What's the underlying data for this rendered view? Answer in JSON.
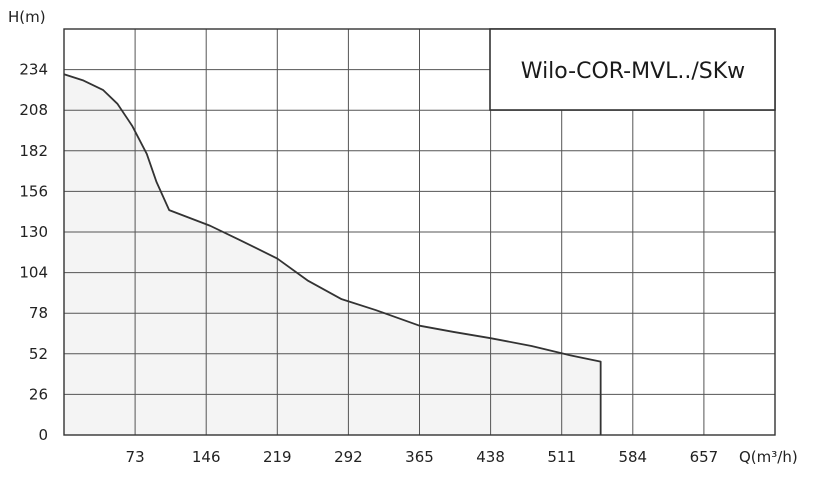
{
  "chart_data": {
    "type": "area",
    "title": "Wilo-COR-MVL../SKw",
    "xlabel": "Q(m³/h)",
    "ylabel": "H(m)",
    "x_ticks": [
      73,
      146,
      219,
      292,
      365,
      438,
      511,
      584,
      657
    ],
    "y_ticks": [
      0,
      26,
      52,
      78,
      104,
      130,
      156,
      182,
      208,
      234
    ],
    "xlim": [
      0,
      730
    ],
    "ylim": [
      0,
      260
    ],
    "grid": true,
    "series": [
      {
        "x": [
          0,
          20,
          40,
          55,
          70,
          85,
          95,
          108,
          150,
          180,
          219,
          250,
          285,
          320,
          365,
          400,
          438,
          480,
          520,
          551,
          551
        ],
        "y": [
          231,
          227,
          221,
          212,
          198,
          180,
          162,
          144,
          134,
          125,
          113,
          99,
          87,
          80,
          70,
          66,
          62,
          57,
          51,
          47,
          0
        ]
      }
    ],
    "colors": {
      "line": "#333333",
      "fill": "#f4f4f4",
      "grid": "#555555",
      "axis": "#333333"
    }
  }
}
